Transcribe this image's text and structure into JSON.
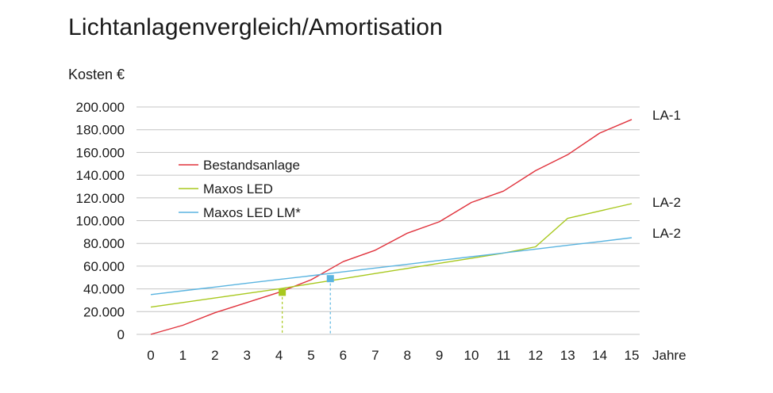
{
  "title": "Lichtanlagenvergleich/Amortisation",
  "chart_data": {
    "type": "line",
    "title": "Lichtanlagenvergleich/Amortisation",
    "ylabel": "Kosten €",
    "xlabel": "Jahre",
    "xlim": [
      0,
      15
    ],
    "ylim": [
      0,
      200000
    ],
    "xticks": [
      "0",
      "1",
      "2",
      "3",
      "4",
      "5",
      "6",
      "7",
      "8",
      "9",
      "10",
      "11",
      "12",
      "13",
      "14",
      "15"
    ],
    "yticks": [
      "0",
      "20.000",
      "40.000",
      "60.000",
      "80.000",
      "100.000",
      "120.000",
      "140.000",
      "160.000",
      "180.000",
      "200.000"
    ],
    "grid": "horizontal",
    "legend_position": "top-left",
    "series": [
      {
        "name": "Bestandsanlage",
        "color": "#e0323c",
        "end_label": "LA-1",
        "points": [
          [
            0,
            0
          ],
          [
            1,
            8000
          ],
          [
            2,
            19000
          ],
          [
            3,
            28000
          ],
          [
            4,
            37000
          ],
          [
            5,
            48000
          ],
          [
            6,
            64000
          ],
          [
            7,
            74000
          ],
          [
            8,
            89000
          ],
          [
            9,
            99000
          ],
          [
            10,
            116000
          ],
          [
            11,
            126000
          ],
          [
            12,
            144000
          ],
          [
            13,
            158000
          ],
          [
            14,
            177000
          ],
          [
            15,
            189000
          ]
        ]
      },
      {
        "name": "Maxos LED",
        "color": "#a8c81e",
        "end_label": "LA-2",
        "points": [
          [
            0,
            24000
          ],
          [
            1,
            28000
          ],
          [
            2,
            32000
          ],
          [
            3,
            36000
          ],
          [
            4,
            40000
          ],
          [
            5,
            44500
          ],
          [
            6,
            49000
          ],
          [
            7,
            53500
          ],
          [
            8,
            58000
          ],
          [
            9,
            62500
          ],
          [
            10,
            67000
          ],
          [
            11,
            71500
          ],
          [
            12,
            77000
          ],
          [
            13,
            102000
          ],
          [
            14,
            108500
          ],
          [
            15,
            115000
          ]
        ]
      },
      {
        "name": "Maxos LED LM*",
        "color": "#5ab4e0",
        "end_label": "LA-2",
        "points": [
          [
            0,
            35000
          ],
          [
            1,
            38300
          ],
          [
            2,
            41600
          ],
          [
            3,
            45000
          ],
          [
            4,
            48300
          ],
          [
            5,
            51600
          ],
          [
            6,
            55000
          ],
          [
            7,
            58300
          ],
          [
            8,
            61600
          ],
          [
            9,
            65000
          ],
          [
            10,
            68300
          ],
          [
            11,
            71600
          ],
          [
            12,
            75000
          ],
          [
            13,
            78300
          ],
          [
            14,
            81600
          ],
          [
            15,
            85000
          ]
        ]
      }
    ],
    "markers": [
      {
        "series": "Maxos LED",
        "x": 4.1,
        "y": 37000,
        "color": "#a8c81e"
      },
      {
        "series": "Maxos LED LM*",
        "x": 5.6,
        "y": 49000,
        "color": "#5ab4e0"
      }
    ]
  }
}
